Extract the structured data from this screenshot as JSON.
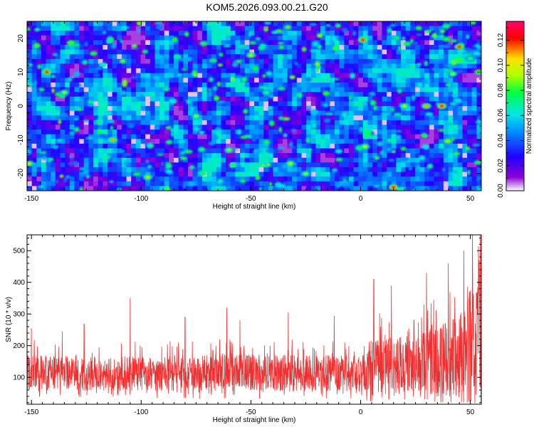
{
  "title": "KOM5.2026.093.00.21.G20",
  "chart_data": [
    {
      "type": "heatmap",
      "xlabel": "Height of straight line (km)",
      "ylabel": "Frequency (Hz)",
      "xlim": [
        -152,
        55
      ],
      "ylim": [
        -25,
        25
      ],
      "x_ticks": [
        -150,
        -100,
        -50,
        0,
        50
      ],
      "y_ticks": [
        -20,
        -10,
        0,
        10,
        20
      ],
      "x_tick_labels": [
        "-150",
        "-100",
        "-50",
        "0",
        "50"
      ],
      "y_tick_labels": [
        "-20",
        "-10",
        "0",
        "10",
        "20"
      ],
      "colorbar": {
        "label": "Normalized spectral amplitude",
        "range": [
          0.0,
          0.135
        ],
        "ticks": [
          0.0,
          0.02,
          0.04,
          0.06,
          0.08,
          0.1,
          0.12
        ],
        "tick_labels": [
          "0.00",
          "0.02",
          "0.04",
          "0.06",
          "0.08",
          "0.10",
          "0.12"
        ]
      },
      "colors": [
        "#ffffff",
        "#8a00d6",
        "#2200ff",
        "#0090ff",
        "#00e6e6",
        "#00ff40",
        "#b0ff00",
        "#ffe000",
        "#ff0000",
        "#ff0070"
      ],
      "hotspots": [
        {
          "x": -143,
          "y": 10,
          "v": 0.12
        },
        {
          "x": -135,
          "y": 4,
          "v": 0.09
        },
        {
          "x": -113,
          "y": -10,
          "v": 0.11
        },
        {
          "x": -97,
          "y": -21,
          "v": 0.1
        },
        {
          "x": -75,
          "y": -3,
          "v": 0.09
        },
        {
          "x": -50,
          "y": 15,
          "v": 0.1
        },
        {
          "x": -43,
          "y": 4,
          "v": 0.08
        },
        {
          "x": -32,
          "y": -17,
          "v": 0.1
        },
        {
          "x": -25,
          "y": -20,
          "v": 0.09
        },
        {
          "x": 1,
          "y": 19.5,
          "v": 0.12
        },
        {
          "x": 2,
          "y": -12,
          "v": 0.1
        },
        {
          "x": 15,
          "y": -24,
          "v": 0.13
        },
        {
          "x": 20,
          "y": 0,
          "v": 0.1
        },
        {
          "x": 30,
          "y": 0,
          "v": 0.11
        },
        {
          "x": 37,
          "y": 0,
          "v": 0.13
        },
        {
          "x": 45,
          "y": 17.5,
          "v": 0.12
        },
        {
          "x": 42,
          "y": 9.5,
          "v": 0.09
        },
        {
          "x": 50,
          "y": 14,
          "v": 0.08
        },
        {
          "x": -151,
          "y": -17,
          "v": 0.1
        },
        {
          "x": -60,
          "y": -13,
          "v": 0.09
        }
      ]
    },
    {
      "type": "line",
      "xlabel": "Height of straight line (km)",
      "ylabel": "SNR (10 * v/v)",
      "xlim": [
        -152,
        55
      ],
      "ylim": [
        15,
        550
      ],
      "x_ticks": [
        -150,
        -100,
        -50,
        0,
        50
      ],
      "y_ticks": [
        100,
        200,
        300,
        400,
        500
      ],
      "x_tick_labels": [
        "-150",
        "-100",
        "-50",
        "0",
        "50"
      ],
      "y_tick_labels": [
        "100",
        "200",
        "300",
        "400",
        "500"
      ],
      "color": "#ee3030",
      "envelope": {
        "x": [
          -152,
          -120,
          -90,
          -60,
          -30,
          0,
          5,
          20,
          35,
          45,
          50,
          52,
          55
        ],
        "center": [
          115,
          112,
          110,
          115,
          112,
          112,
          135,
          140,
          150,
          175,
          200,
          210,
          220
        ],
        "spread": [
          55,
          55,
          55,
          58,
          58,
          58,
          90,
          90,
          110,
          140,
          180,
          200,
          210
        ]
      },
      "peaks": [
        {
          "x": -150,
          "y": 255
        },
        {
          "x": -136,
          "y": 245
        },
        {
          "x": -126,
          "y": 268
        },
        {
          "x": -105,
          "y": 350
        },
        {
          "x": -80,
          "y": 290
        },
        {
          "x": -61,
          "y": 320
        },
        {
          "x": -55,
          "y": 280
        },
        {
          "x": -33,
          "y": 305
        },
        {
          "x": -12,
          "y": 295
        },
        {
          "x": 6,
          "y": 410
        },
        {
          "x": 14,
          "y": 390
        },
        {
          "x": 30,
          "y": 430
        },
        {
          "x": 40,
          "y": 460
        },
        {
          "x": 47,
          "y": 500
        },
        {
          "x": 51,
          "y": 555
        },
        {
          "x": 54,
          "y": 470
        }
      ]
    }
  ]
}
